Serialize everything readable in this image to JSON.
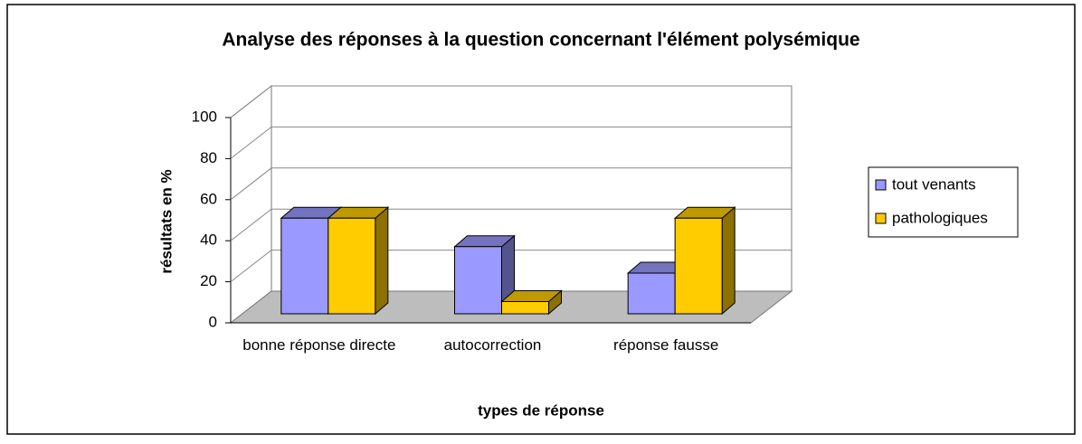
{
  "chart_data": {
    "type": "bar3d",
    "title": "Analyse des réponses à la question concernant l'élément polysémique",
    "xlabel": "types de réponse",
    "ylabel": "résultats en %",
    "categories": [
      "bonne réponse directe",
      "autocorrection",
      "réponse fausse"
    ],
    "series": [
      {
        "name": "tout venants",
        "color": "#9999ff",
        "values": [
          47,
          33,
          20
        ]
      },
      {
        "name": "pathologiques",
        "color": "#ffcc00",
        "values": [
          47,
          6,
          47
        ]
      }
    ],
    "ylim": [
      0,
      100
    ],
    "yticks": [
      0,
      20,
      40,
      60,
      80,
      100
    ],
    "grid": true,
    "legend": "right"
  }
}
